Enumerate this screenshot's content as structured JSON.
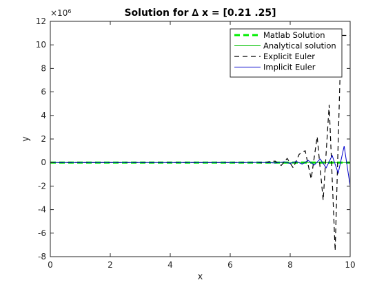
{
  "chart_data": {
    "type": "line",
    "title": "Solution for ∆ x = [0.21 .25]",
    "xlabel": "x",
    "ylabel": "y",
    "xlim": [
      0,
      10
    ],
    "ylim": [
      -8,
      12
    ],
    "y_exponent_label": "×10",
    "y_exponent_power": "6",
    "x_ticks": [
      0,
      2,
      4,
      6,
      8,
      10
    ],
    "y_ticks": [
      -8,
      -6,
      -4,
      -2,
      0,
      2,
      4,
      6,
      8,
      10,
      12
    ],
    "legend_position": "top-right",
    "grid": false,
    "series": [
      {
        "name": "Matlab Solution",
        "color": "#00ee00",
        "style": "dashed-thick",
        "x": [
          0,
          1,
          2,
          3,
          4,
          5,
          6,
          7,
          8,
          9,
          10
        ],
        "y": [
          0,
          0,
          0,
          0,
          0,
          0,
          0,
          0,
          0,
          0,
          0
        ]
      },
      {
        "name": "Analytical solution",
        "color": "#00c000",
        "style": "solid",
        "x": [
          0,
          1,
          2,
          3,
          4,
          5,
          6,
          7,
          8,
          9,
          10
        ],
        "y": [
          0,
          0,
          0,
          0,
          0,
          0,
          0,
          0,
          0,
          0,
          0
        ]
      },
      {
        "name": "Explicit Euler",
        "color": "#000000",
        "style": "dashed",
        "x": [
          0,
          6.3,
          6.5,
          6.7,
          6.9,
          7.1,
          7.3,
          7.5,
          7.7,
          7.9,
          8.1,
          8.3,
          8.5,
          8.7,
          8.9,
          9.1,
          9.3,
          9.5,
          9.7,
          9.9,
          10
        ],
        "y": [
          0,
          0,
          0,
          0,
          0.02,
          -0.05,
          0.08,
          0.12,
          -0.25,
          0.35,
          -0.45,
          0.7,
          1.0,
          -1.4,
          2.2,
          -3.2,
          4.9,
          -7.5,
          10.8,
          10.8,
          10.8
        ]
      },
      {
        "name": "Implicit Euler",
        "color": "#0000cc",
        "style": "solid",
        "x": [
          0,
          6.5,
          7.0,
          7.5,
          7.8,
          8.0,
          8.2,
          8.4,
          8.6,
          8.8,
          9.0,
          9.2,
          9.4,
          9.6,
          9.8,
          10
        ],
        "y": [
          0,
          0,
          0.02,
          -0.04,
          0.06,
          -0.08,
          0.1,
          -0.14,
          0.18,
          -0.22,
          0.3,
          -0.45,
          0.6,
          -0.9,
          1.4,
          -2.0
        ]
      }
    ]
  }
}
